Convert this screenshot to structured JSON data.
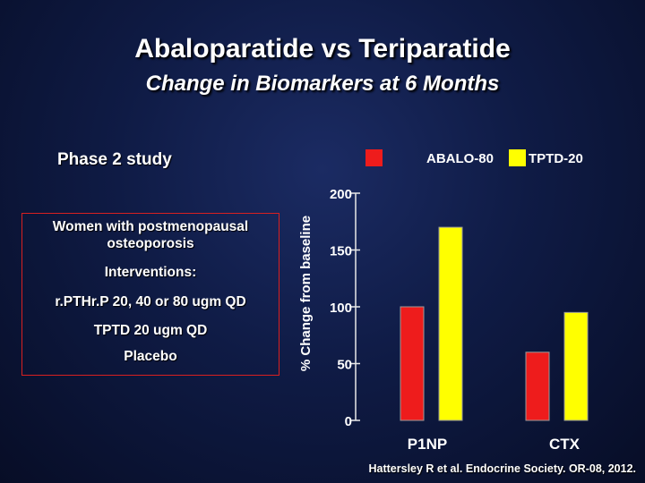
{
  "slide": {
    "title": "Abaloparatide vs Teriparatide",
    "subtitle": "Change in Biomarkers at 6 Months",
    "study_label": "Phase 2 study",
    "info_box": {
      "lines": [
        "Women with postmenopausal",
        "osteoporosis",
        "Interventions:",
        "r.PTHr.P 20, 40 or 80 ugm QD",
        "TPTD 20 ugm QD",
        "Placebo"
      ]
    },
    "credit": "Hattersley R et al. Endocrine Society. OR-08, 2012."
  },
  "chart_data": {
    "type": "bar",
    "title": "Change in Biomarkers at 6 Months",
    "xlabel": "",
    "ylabel": "% Change from baseline",
    "ylim": [
      0,
      200
    ],
    "yticks": [
      0,
      50,
      100,
      150,
      200
    ],
    "categories": [
      "P1NP",
      "CTX"
    ],
    "series": [
      {
        "name": "ABALO-80",
        "color": "#ee1c1c",
        "values": [
          100,
          60
        ]
      },
      {
        "name": "TPTD-20",
        "color": "#ffff00",
        "values": [
          170,
          95
        ]
      }
    ],
    "legend_position": "top-right"
  }
}
